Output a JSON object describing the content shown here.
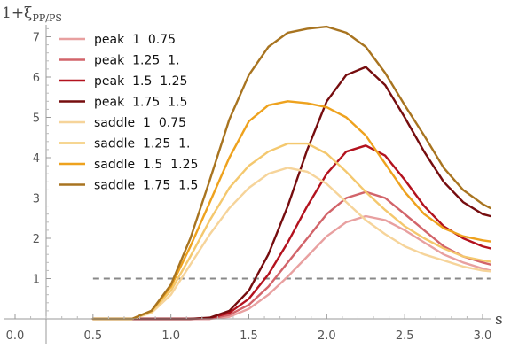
{
  "chart_data": {
    "type": "line",
    "xlabel": "s",
    "ylabel": "1+ξ",
    "ylabel_sub": "PP/PS",
    "xlim": [
      0.0,
      3.0
    ],
    "ylim": [
      0,
      7.5
    ],
    "x_ticks": [
      "0.0",
      "0.5",
      "1.0",
      "1.5",
      "2.0",
      "2.5",
      "3.0"
    ],
    "y_ticks": [
      "1",
      "2",
      "3",
      "4",
      "5",
      "6",
      "7"
    ],
    "x": [
      0.5,
      0.625,
      0.75,
      0.875,
      1.0,
      1.125,
      1.25,
      1.375,
      1.5,
      1.625,
      1.75,
      1.875,
      2.0,
      2.125,
      2.25,
      2.375,
      2.5,
      2.625,
      2.75,
      2.875,
      3.0,
      3.05
    ],
    "reference_line": {
      "y": 1,
      "style": "dashed",
      "color": "#888888"
    },
    "legend_position": "top-left",
    "series": [
      {
        "name": "peak  1  0.75",
        "color": "#E8A0A0",
        "values": [
          0,
          0,
          0,
          0,
          0,
          0,
          0,
          0.05,
          0.25,
          0.6,
          1.05,
          1.55,
          2.05,
          2.4,
          2.55,
          2.45,
          2.2,
          1.9,
          1.6,
          1.4,
          1.25,
          1.2
        ]
      },
      {
        "name": "peak  1.25  1.",
        "color": "#D2646A",
        "values": [
          0,
          0,
          0,
          0,
          0,
          0,
          0,
          0.1,
          0.35,
          0.8,
          1.4,
          2.0,
          2.6,
          3.0,
          3.15,
          3.0,
          2.6,
          2.2,
          1.8,
          1.55,
          1.4,
          1.35
        ]
      },
      {
        "name": "peak  1.5  1.25",
        "color": "#B3121E",
        "values": [
          0,
          0,
          0,
          0,
          0,
          0,
          0.02,
          0.15,
          0.5,
          1.1,
          1.9,
          2.8,
          3.6,
          4.15,
          4.3,
          4.05,
          3.45,
          2.8,
          2.3,
          2.0,
          1.8,
          1.75
        ]
      },
      {
        "name": "peak  1.75  1.5",
        "color": "#760D0F",
        "values": [
          0,
          0,
          0,
          0,
          0,
          0,
          0.03,
          0.2,
          0.7,
          1.6,
          2.8,
          4.2,
          5.4,
          6.05,
          6.25,
          5.8,
          5.0,
          4.15,
          3.4,
          2.9,
          2.6,
          2.55
        ]
      },
      {
        "name": "saddle  1  0.75",
        "color": "#F6D49A",
        "values": [
          0,
          0,
          0,
          0.15,
          0.6,
          1.35,
          2.1,
          2.75,
          3.25,
          3.6,
          3.75,
          3.65,
          3.35,
          2.9,
          2.45,
          2.1,
          1.8,
          1.6,
          1.45,
          1.3,
          1.2,
          1.18
        ]
      },
      {
        "name": "saddle  1.25  1.",
        "color": "#F4C86E",
        "values": [
          0,
          0,
          0,
          0.18,
          0.7,
          1.55,
          2.45,
          3.25,
          3.8,
          4.15,
          4.35,
          4.35,
          4.1,
          3.65,
          3.15,
          2.7,
          2.3,
          2.0,
          1.75,
          1.55,
          1.45,
          1.42
        ]
      },
      {
        "name": "saddle  1.5  1.25",
        "color": "#EEA21E",
        "values": [
          0,
          0,
          0,
          0.2,
          0.8,
          1.8,
          2.9,
          4.0,
          4.9,
          5.3,
          5.4,
          5.35,
          5.25,
          5.0,
          4.55,
          3.85,
          3.15,
          2.6,
          2.25,
          2.05,
          1.95,
          1.92
        ]
      },
      {
        "name": "saddle  1.75  1.5",
        "color": "#A87420",
        "values": [
          0,
          0,
          0,
          0.2,
          0.85,
          2.0,
          3.45,
          4.95,
          6.05,
          6.75,
          7.1,
          7.2,
          7.25,
          7.1,
          6.75,
          6.1,
          5.3,
          4.55,
          3.75,
          3.2,
          2.85,
          2.75
        ]
      }
    ]
  }
}
